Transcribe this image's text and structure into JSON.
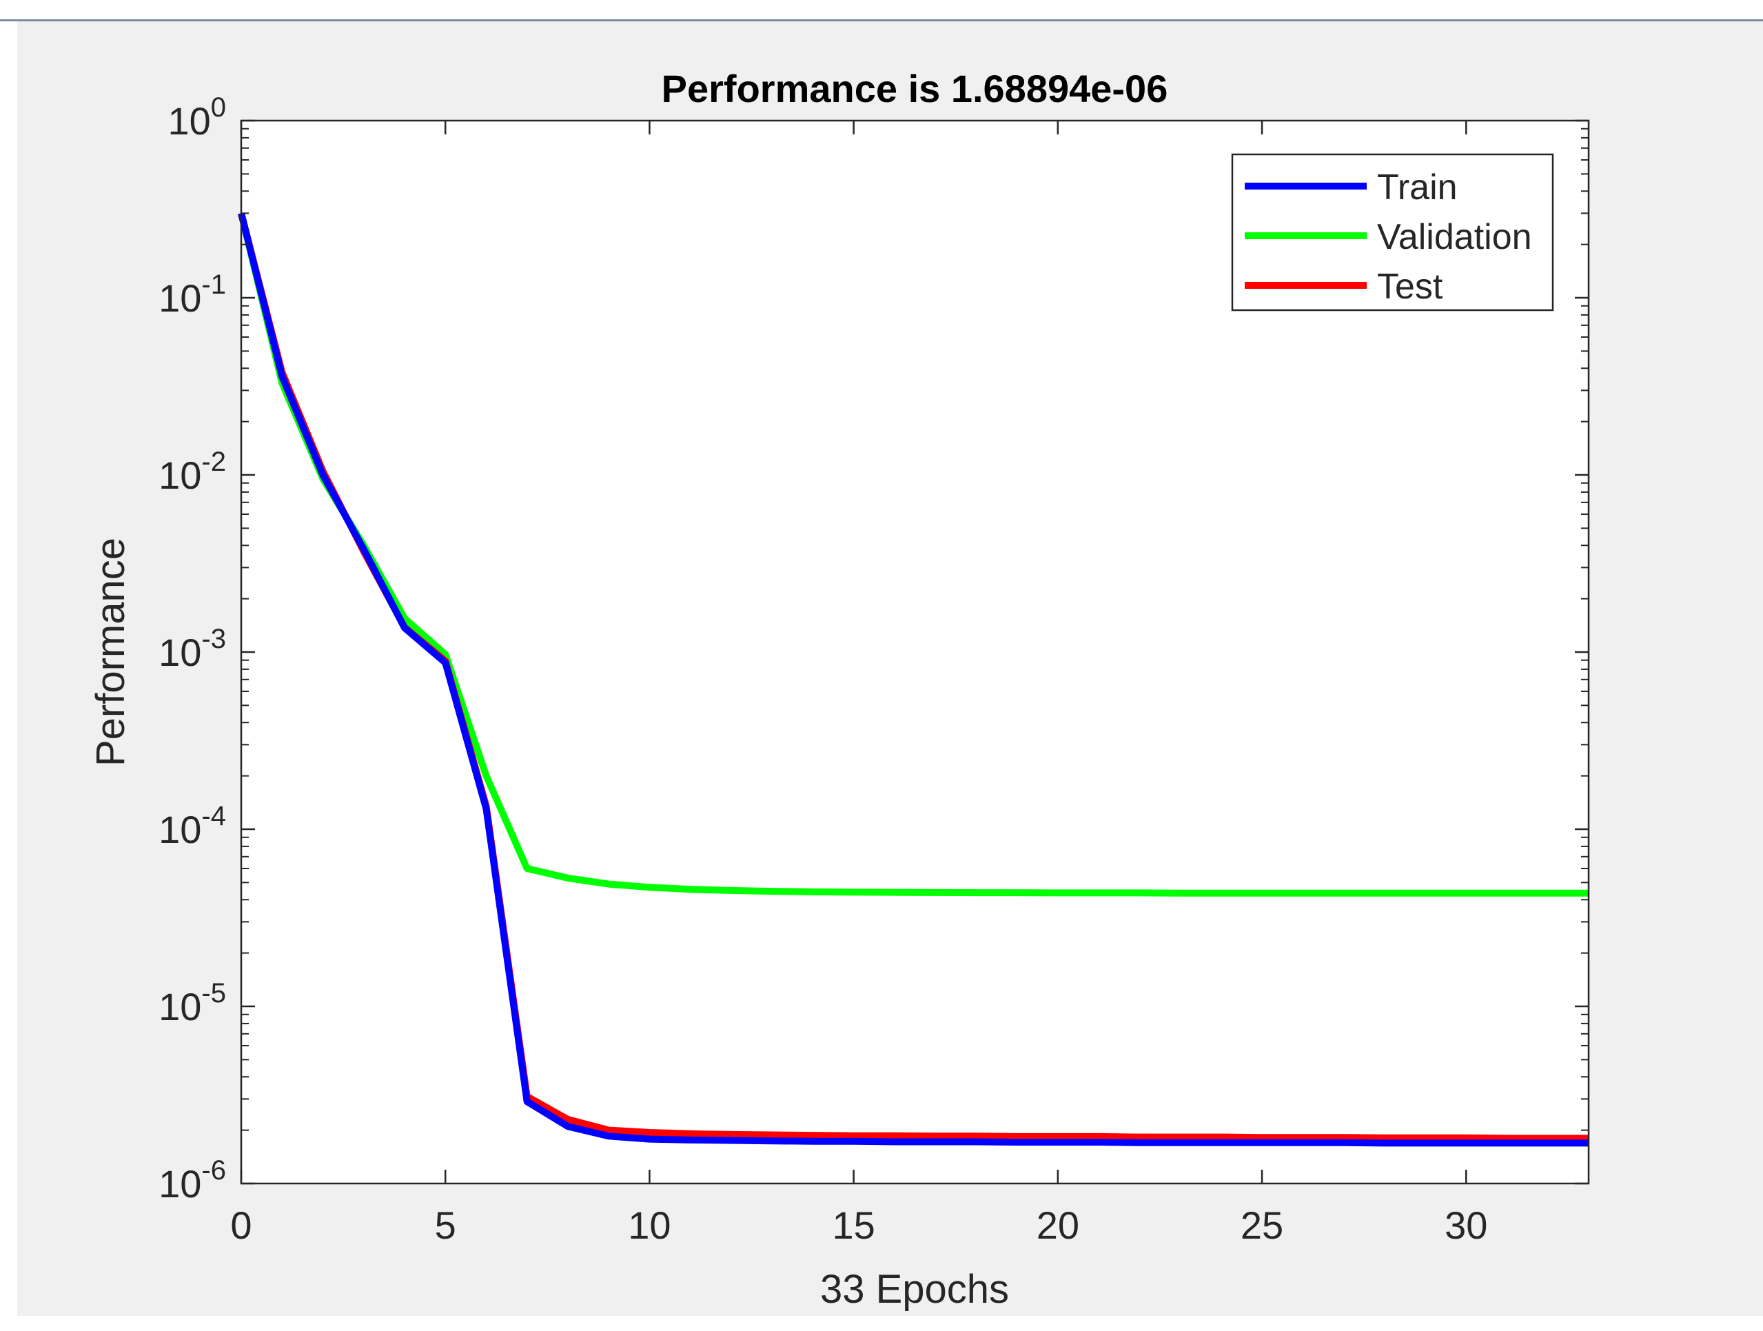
{
  "chart_data": {
    "type": "line",
    "title": "Performance is 1.68894e-06",
    "xlabel": "33 Epochs",
    "ylabel": "Performance",
    "yscale": "log",
    "xlim": [
      0,
      33
    ],
    "ylim": [
      1e-06,
      1
    ],
    "xticks": [
      "0",
      "5",
      "10",
      "15",
      "20",
      "25",
      "30"
    ],
    "xtick_values": [
      0,
      5,
      10,
      15,
      20,
      25,
      30
    ],
    "yticks": [
      {
        "base": "10",
        "exp": "0",
        "value": 1
      },
      {
        "base": "10",
        "exp": "-1",
        "value": 0.1
      },
      {
        "base": "10",
        "exp": "-2",
        "value": 0.01
      },
      {
        "base": "10",
        "exp": "-3",
        "value": 0.001
      },
      {
        "base": "10",
        "exp": "-4",
        "value": 0.0001
      },
      {
        "base": "10",
        "exp": "-5",
        "value": 1e-05
      },
      {
        "base": "10",
        "exp": "-6",
        "value": 1e-06
      }
    ],
    "grid": false,
    "legend_position": "top-right",
    "x": [
      0,
      1,
      2,
      3,
      4,
      5,
      6,
      7,
      8,
      9,
      10,
      11,
      12,
      13,
      14,
      15,
      16,
      17,
      18,
      19,
      20,
      21,
      22,
      23,
      24,
      25,
      26,
      27,
      28,
      29,
      30,
      31,
      32,
      33
    ],
    "series": [
      {
        "name": "Validation",
        "color": "#00ff00",
        "values": [
          0.3,
          0.033,
          0.0095,
          0.004,
          0.00155,
          0.00097,
          0.0002,
          6e-05,
          5.3e-05,
          4.9e-05,
          4.7e-05,
          4.58e-05,
          4.51e-05,
          4.46e-05,
          4.43e-05,
          4.41e-05,
          4.4e-05,
          4.39e-05,
          4.38e-05,
          4.38e-05,
          4.37e-05,
          4.37e-05,
          4.37e-05,
          4.36e-05,
          4.36e-05,
          4.36e-05,
          4.36e-05,
          4.36e-05,
          4.36e-05,
          4.36e-05,
          4.36e-05,
          4.36e-05,
          4.36e-05,
          4.36e-05
        ]
      },
      {
        "name": "Test",
        "color": "#ff0000",
        "values": [
          0.3,
          0.038,
          0.0105,
          0.0037,
          0.00138,
          0.00089,
          0.000135,
          3.1e-06,
          2.3e-06,
          2e-06,
          1.94e-06,
          1.91e-06,
          1.89e-06,
          1.88e-06,
          1.87e-06,
          1.86e-06,
          1.86e-06,
          1.85e-06,
          1.85e-06,
          1.84e-06,
          1.84e-06,
          1.84e-06,
          1.83e-06,
          1.83e-06,
          1.83e-06,
          1.82e-06,
          1.82e-06,
          1.82e-06,
          1.81e-06,
          1.81e-06,
          1.81e-06,
          1.8e-06,
          1.8e-06,
          1.8e-06
        ]
      },
      {
        "name": "Train",
        "color": "#0000ff",
        "values": [
          0.3,
          0.036,
          0.01,
          0.0038,
          0.00137,
          0.00087,
          0.00013,
          2.9e-06,
          2.1e-06,
          1.85e-06,
          1.78e-06,
          1.76e-06,
          1.75e-06,
          1.74e-06,
          1.73e-06,
          1.73e-06,
          1.72e-06,
          1.72e-06,
          1.72e-06,
          1.71e-06,
          1.71e-06,
          1.71e-06,
          1.7e-06,
          1.7e-06,
          1.7e-06,
          1.7e-06,
          1.7e-06,
          1.7e-06,
          1.69e-06,
          1.69e-06,
          1.69e-06,
          1.69e-06,
          1.69e-06,
          1.69e-06
        ]
      }
    ],
    "legend_order": [
      "Train",
      "Validation",
      "Test"
    ]
  }
}
